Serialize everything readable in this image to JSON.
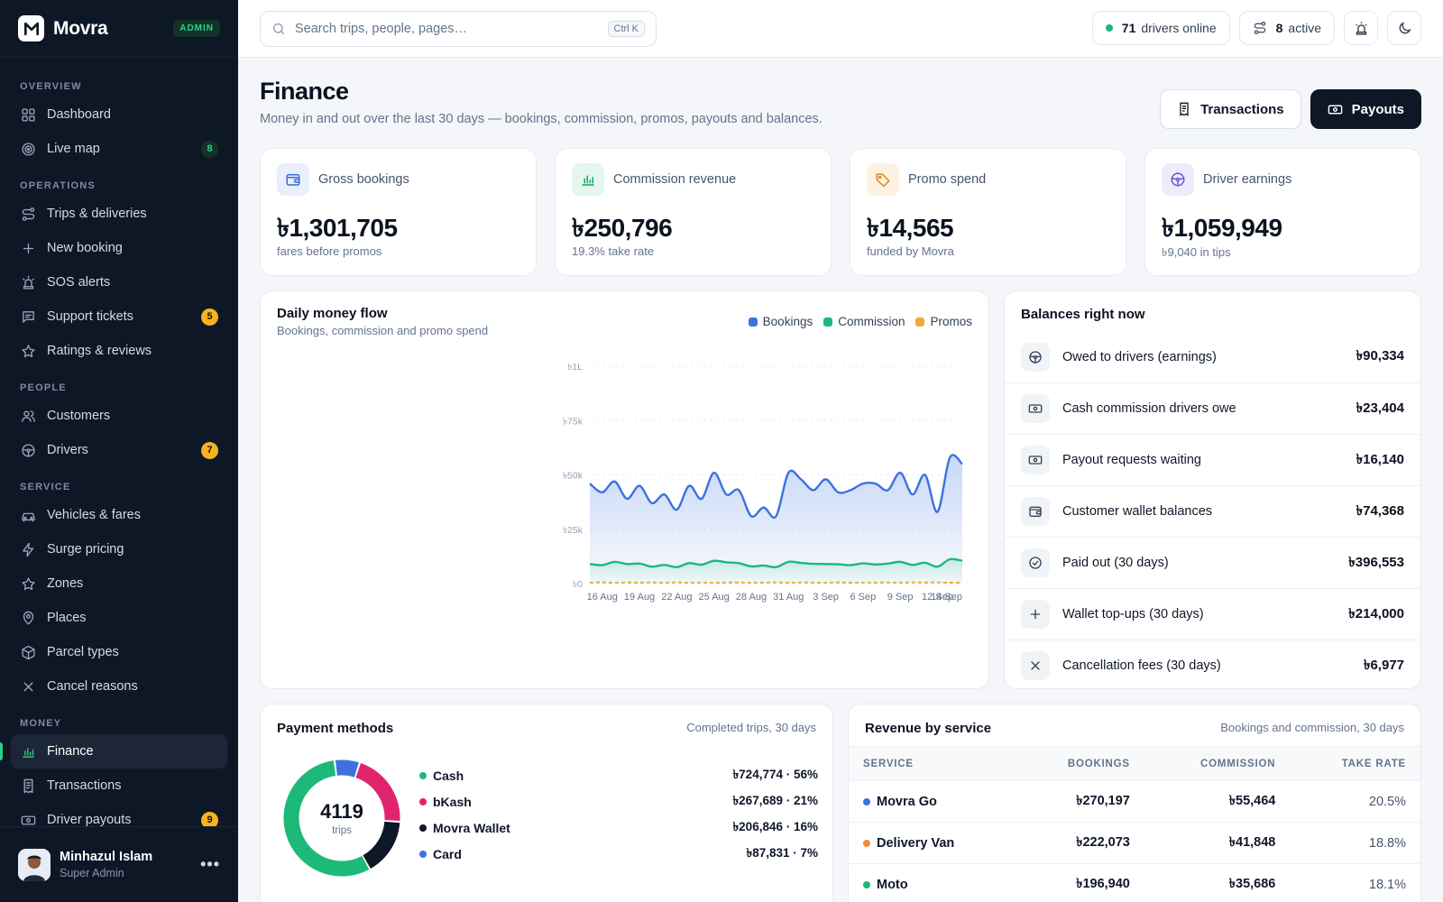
{
  "brand": {
    "name": "Movra",
    "badge": "ADMIN"
  },
  "sidebar": {
    "sections": [
      {
        "title": "OVERVIEW",
        "items": [
          {
            "label": "Dashboard",
            "icon": "grid-icon"
          },
          {
            "label": "Live map",
            "icon": "target-icon",
            "badge": "8",
            "badge_color": "green"
          }
        ]
      },
      {
        "title": "OPERATIONS",
        "items": [
          {
            "label": "Trips & deliveries",
            "icon": "route-icon"
          },
          {
            "label": "New booking",
            "icon": "plus-icon"
          },
          {
            "label": "SOS alerts",
            "icon": "siren-icon"
          },
          {
            "label": "Support tickets",
            "icon": "message-icon",
            "badge": "5",
            "badge_color": "amber"
          },
          {
            "label": "Ratings & reviews",
            "icon": "star-icon"
          }
        ]
      },
      {
        "title": "PEOPLE",
        "items": [
          {
            "label": "Customers",
            "icon": "users-icon"
          },
          {
            "label": "Drivers",
            "icon": "steering-wheel-icon",
            "badge": "7",
            "badge_color": "amber"
          }
        ]
      },
      {
        "title": "SERVICE",
        "items": [
          {
            "label": "Vehicles & fares",
            "icon": "car-icon"
          },
          {
            "label": "Surge pricing",
            "icon": "zap-icon"
          },
          {
            "label": "Zones",
            "icon": "star-icon"
          },
          {
            "label": "Places",
            "icon": "map-pin-icon"
          },
          {
            "label": "Parcel types",
            "icon": "package-icon"
          },
          {
            "label": "Cancel reasons",
            "icon": "close-icon"
          }
        ]
      },
      {
        "title": "MONEY",
        "items": [
          {
            "label": "Finance",
            "icon": "bar-chart-icon",
            "active": true
          },
          {
            "label": "Transactions",
            "icon": "receipt-icon"
          },
          {
            "label": "Driver payouts",
            "icon": "banknote-icon",
            "badge": "9",
            "badge_color": "amber"
          }
        ]
      }
    ],
    "user": {
      "name": "Minhazul Islam",
      "role": "Super Admin",
      "more": "•••"
    }
  },
  "topbar": {
    "search_placeholder": "Search trips, people, pages…",
    "shortcut": "Ctrl K",
    "drivers_online_count": "71",
    "drivers_online_label": "drivers online",
    "active_count": "8",
    "active_label": "active"
  },
  "page": {
    "title": "Finance",
    "subtitle": "Money in and out over the last 30 days — bookings, commission, promos, payouts and balances.",
    "transactions_button": "Transactions",
    "payouts_button": "Payouts"
  },
  "stats": [
    {
      "label": "Gross bookings",
      "value": "৳1,301,705",
      "note": "fares before promos",
      "icon": "wallet-icon",
      "icon_bg": "#e9effc",
      "icon_color": "#3b6fd8"
    },
    {
      "label": "Commission revenue",
      "value": "৳250,796",
      "note": "19.3% take rate",
      "icon": "bar-chart-icon",
      "icon_bg": "#e4f6ee",
      "icon_color": "#17a36a"
    },
    {
      "label": "Promo spend",
      "value": "৳14,565",
      "note": "funded by Movra",
      "icon": "tag-icon",
      "icon_bg": "#fdf1e1",
      "icon_color": "#d98a1a"
    },
    {
      "label": "Driver earnings",
      "value": "৳1,059,949",
      "note": "৳9,040 in tips",
      "icon": "steering-wheel-icon",
      "icon_bg": "#eeebfb",
      "icon_color": "#6d55d9"
    }
  ],
  "money_flow": {
    "title": "Daily money flow",
    "subtitle": "Bookings, commission and promo spend"
  },
  "chart_data": {
    "type": "area",
    "x": [
      "15 Aug",
      "16 Aug",
      "17 Aug",
      "18 Aug",
      "19 Aug",
      "20 Aug",
      "21 Aug",
      "22 Aug",
      "23 Aug",
      "24 Aug",
      "25 Aug",
      "26 Aug",
      "27 Aug",
      "28 Aug",
      "29 Aug",
      "30 Aug",
      "31 Aug",
      "1 Sep",
      "2 Sep",
      "3 Sep",
      "4 Sep",
      "5 Sep",
      "6 Sep",
      "7 Sep",
      "8 Sep",
      "9 Sep",
      "10 Sep",
      "11 Sep",
      "12 Sep",
      "13 Sep",
      "14 Sep"
    ],
    "tick_labels": [
      "16 Aug",
      "19 Aug",
      "22 Aug",
      "25 Aug",
      "28 Aug",
      "31 Aug",
      "3 Sep",
      "6 Sep",
      "9 Sep",
      "12 Sep",
      "14 Sep"
    ],
    "series": [
      {
        "name": "Bookings",
        "color": "#3b72e0",
        "values": [
          46000,
          42000,
          47000,
          39000,
          45000,
          37000,
          41000,
          34000,
          45000,
          39000,
          51000,
          41000,
          43000,
          31000,
          35000,
          31000,
          51000,
          48000,
          43000,
          48000,
          42000,
          43000,
          46000,
          46000,
          43000,
          51000,
          41000,
          50000,
          33000,
          58000,
          55000
        ]
      },
      {
        "name": "Commission",
        "color": "#1cb978",
        "values": [
          9000,
          8500,
          10000,
          9000,
          9200,
          7800,
          8600,
          7600,
          9400,
          8700,
          10500,
          9800,
          9400,
          7900,
          8300,
          7600,
          10000,
          9500,
          9100,
          9000,
          8900,
          8500,
          9300,
          8800,
          9200,
          10000,
          8600,
          9600,
          7800,
          11200,
          10500
        ]
      },
      {
        "name": "Promos",
        "color": "#f2a93b",
        "values": [
          400,
          600,
          350,
          500,
          450,
          520,
          380,
          560,
          420,
          480,
          300,
          460,
          520,
          390,
          470,
          540,
          410,
          500,
          450,
          380,
          560,
          430,
          490,
          470,
          520,
          400,
          530,
          480,
          560,
          420,
          470
        ]
      }
    ],
    "y_ticks": [
      "৳0",
      "৳25k",
      "৳50k",
      "৳75k",
      "৳1L"
    ],
    "ylim": [
      0,
      100000
    ],
    "grid": true,
    "legend": "top-right"
  },
  "balances": {
    "title": "Balances right now",
    "rows": [
      {
        "label": "Owed to drivers (earnings)",
        "value": "৳90,334",
        "icon": "steering-wheel-icon"
      },
      {
        "label": "Cash commission drivers owe",
        "value": "৳23,404",
        "icon": "banknote-icon"
      },
      {
        "label": "Payout requests waiting",
        "value": "৳16,140",
        "icon": "banknote-icon"
      },
      {
        "label": "Customer wallet balances",
        "value": "৳74,368",
        "icon": "wallet-icon"
      },
      {
        "label": "Paid out (30 days)",
        "value": "৳396,553",
        "icon": "check-circle-icon"
      },
      {
        "label": "Wallet top-ups (30 days)",
        "value": "৳214,000",
        "icon": "plus-icon"
      },
      {
        "label": "Cancellation fees (30 days)",
        "value": "৳6,977",
        "icon": "close-icon"
      }
    ]
  },
  "payment_methods": {
    "title": "Payment methods",
    "note": "Completed trips, 30 days",
    "total": "4119",
    "total_label": "trips",
    "items": [
      {
        "name": "Cash",
        "value": "৳724,774 · 56%",
        "share": 56,
        "color": "#1cb978"
      },
      {
        "name": "bKash",
        "value": "৳267,689 · 21%",
        "share": 21,
        "color": "#e0256e"
      },
      {
        "name": "Movra Wallet",
        "value": "৳206,846 · 16%",
        "share": 16,
        "color": "#0e1726"
      },
      {
        "name": "Card",
        "value": "৳87,831 · 7%",
        "share": 7,
        "color": "#3b72e0"
      }
    ]
  },
  "revenue": {
    "title": "Revenue by service",
    "note": "Bookings and commission, 30 days",
    "columns": [
      "SERVICE",
      "BOOKINGS",
      "COMMISSION",
      "TAKE RATE"
    ],
    "rows": [
      {
        "service": "Movra Go",
        "bookings": "৳270,197",
        "commission": "৳55,464",
        "take_rate": "20.5%",
        "color": "#3b72e0"
      },
      {
        "service": "Delivery Van",
        "bookings": "৳222,073",
        "commission": "৳41,848",
        "take_rate": "18.8%",
        "color": "#f28a3b"
      },
      {
        "service": "Moto",
        "bookings": "৳196,940",
        "commission": "৳35,686",
        "take_rate": "18.1%",
        "color": "#1cb978"
      }
    ]
  }
}
